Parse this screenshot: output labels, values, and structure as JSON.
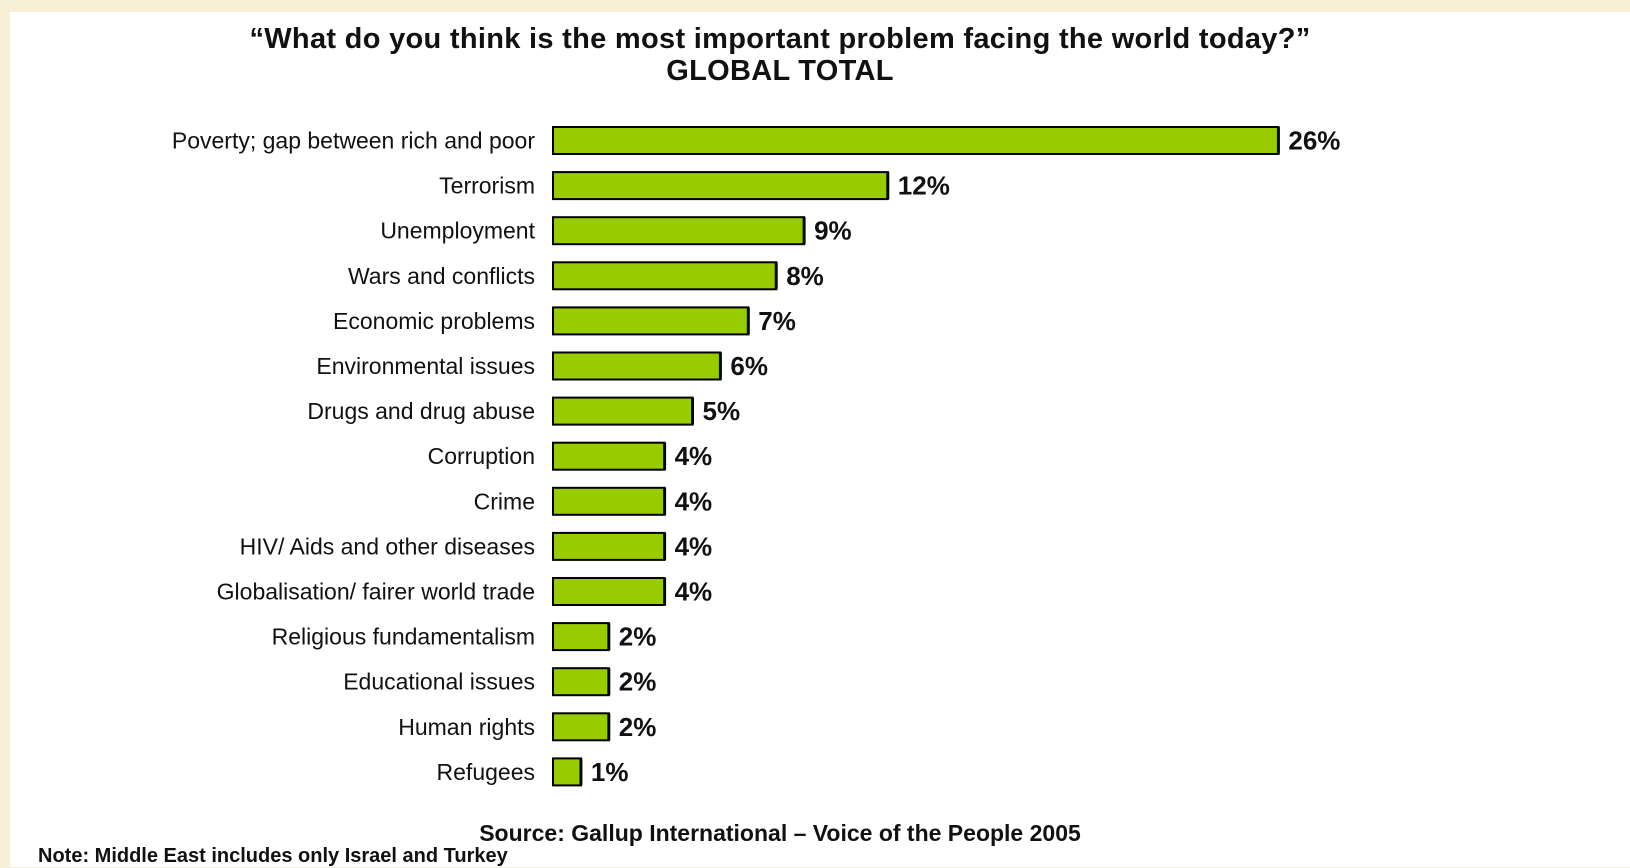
{
  "colors": {
    "background": "#f6efd6",
    "panel": "#ffffff",
    "bar_fill": "#99cc00",
    "bar_stroke": "#000000",
    "text": "#111111"
  },
  "chart_data": {
    "type": "bar",
    "orientation": "horizontal",
    "title": "“What do you think is the most important problem facing the world today?”",
    "subtitle": "GLOBAL TOTAL",
    "categories": [
      "Poverty; gap between rich and poor",
      "Terrorism",
      "Unemployment",
      "Wars and conflicts",
      "Economic problems",
      "Environmental issues",
      "Drugs and drug abuse",
      "Corruption",
      "Crime",
      "HIV/ Aids and other diseases",
      "Globalisation/ fairer world trade",
      "Religious fundamentalism",
      "Educational issues",
      "Human rights",
      "Refugees"
    ],
    "values": [
      26,
      12,
      9,
      8,
      7,
      6,
      5,
      4,
      4,
      4,
      4,
      2,
      2,
      2,
      1
    ],
    "value_labels": [
      "26%",
      "12%",
      "9%",
      "8%",
      "7%",
      "6%",
      "5%",
      "4%",
      "4%",
      "4%",
      "4%",
      "2%",
      "2%",
      "2%",
      "1%"
    ],
    "unit": "%",
    "grid": false,
    "legend": "none"
  },
  "source": "Source: Gallup International – Voice of the People 2005",
  "note": "Note: Middle East includes only Israel and Turkey"
}
